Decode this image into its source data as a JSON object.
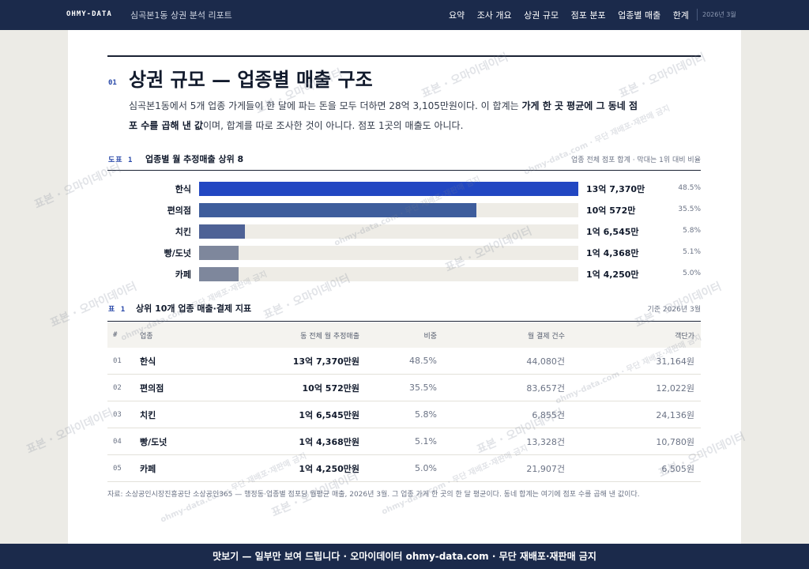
{
  "header": {
    "brand": "OHMY-DATA",
    "report_title": "심곡본1동 상권 분석 리포트",
    "nav": [
      "요약",
      "조사 개요",
      "상권 규모",
      "점포 분포",
      "업종별 매출",
      "한계"
    ],
    "date": "2026년 3월"
  },
  "section": {
    "number": "01",
    "title": "상권 규모 — 업종별 매출 구조",
    "lead_1": "심곡본1동에서 5개 업종 가게들이 한 달에 파는 돈을 모두 더하면 28억 3,105만원이다. 이 합계는 ",
    "lead_bold": "가게 한 곳 평균에 그 동네 점포 수를 곱해 낸 값",
    "lead_2": "이며, 합계를 따로 조사한 것이 아니다. 점포 1곳의 매출도 아니다."
  },
  "figure": {
    "code": "도표 1",
    "title": "업종별 월 추정매출 상위 8",
    "note": "업종 전체 점포 합계 · 막대는 1위 대비 비율"
  },
  "chart_data": {
    "type": "bar",
    "orientation": "horizontal",
    "title": "업종별 월 추정매출 상위 8",
    "categories": [
      "한식",
      "편의점",
      "치킨",
      "빵/도넛",
      "카페"
    ],
    "values_label": [
      "13억 7,370만",
      "10억 572만",
      "1억 6,545만",
      "1억 4,368만",
      "1억 4,250만"
    ],
    "values": [
      137370,
      100572,
      16545,
      14368,
      14250
    ],
    "unit": "만원",
    "percent_labels": [
      "48.5%",
      "35.5%",
      "5.8%",
      "5.1%",
      "5.0%"
    ],
    "colors": [
      "#2247c2",
      "#3e5d9c",
      "#4e6296",
      "#7e879c",
      "#7e879c"
    ]
  },
  "table": {
    "code": "표 1",
    "title": "상위 10개 업종 매출·결제 지표",
    "note": "기준 2026년 3월",
    "headers": [
      "#",
      "업종",
      "동 전체 월 추정매출",
      "비중",
      "월 결제 건수",
      "객단가"
    ],
    "rows": [
      [
        "01",
        "한식",
        "13억 7,370만원",
        "48.5%",
        "44,080건",
        "31,164원"
      ],
      [
        "02",
        "편의점",
        "10억 572만원",
        "35.5%",
        "83,657건",
        "12,022원"
      ],
      [
        "03",
        "치킨",
        "1억 6,545만원",
        "5.8%",
        "6,855건",
        "24,136원"
      ],
      [
        "04",
        "빵/도넛",
        "1억 4,368만원",
        "5.1%",
        "13,328건",
        "10,780원"
      ],
      [
        "05",
        "카페",
        "1억 4,250만원",
        "5.0%",
        "21,907건",
        "6,505원"
      ]
    ]
  },
  "source": "자료: 소상공인시장진흥공단 소상공인365 — 행정동·업종별 점포당 월평균 매출, 2026년 3월. 그 업종 가게 한 곳의 한 달 평균이다. 동네 합계는 여기에 점포 수를 곱해 낸 값이다.",
  "watermark": {
    "primary": "표본 · 오마이데이터",
    "secondary": "ohmy-data.com · 무단 재배포·재판매 금지"
  },
  "banner": "맛보기 — 일부만 보여 드립니다 · 오마이데이터 ohmy-data.com · 무단 재배포·재판매 금지"
}
